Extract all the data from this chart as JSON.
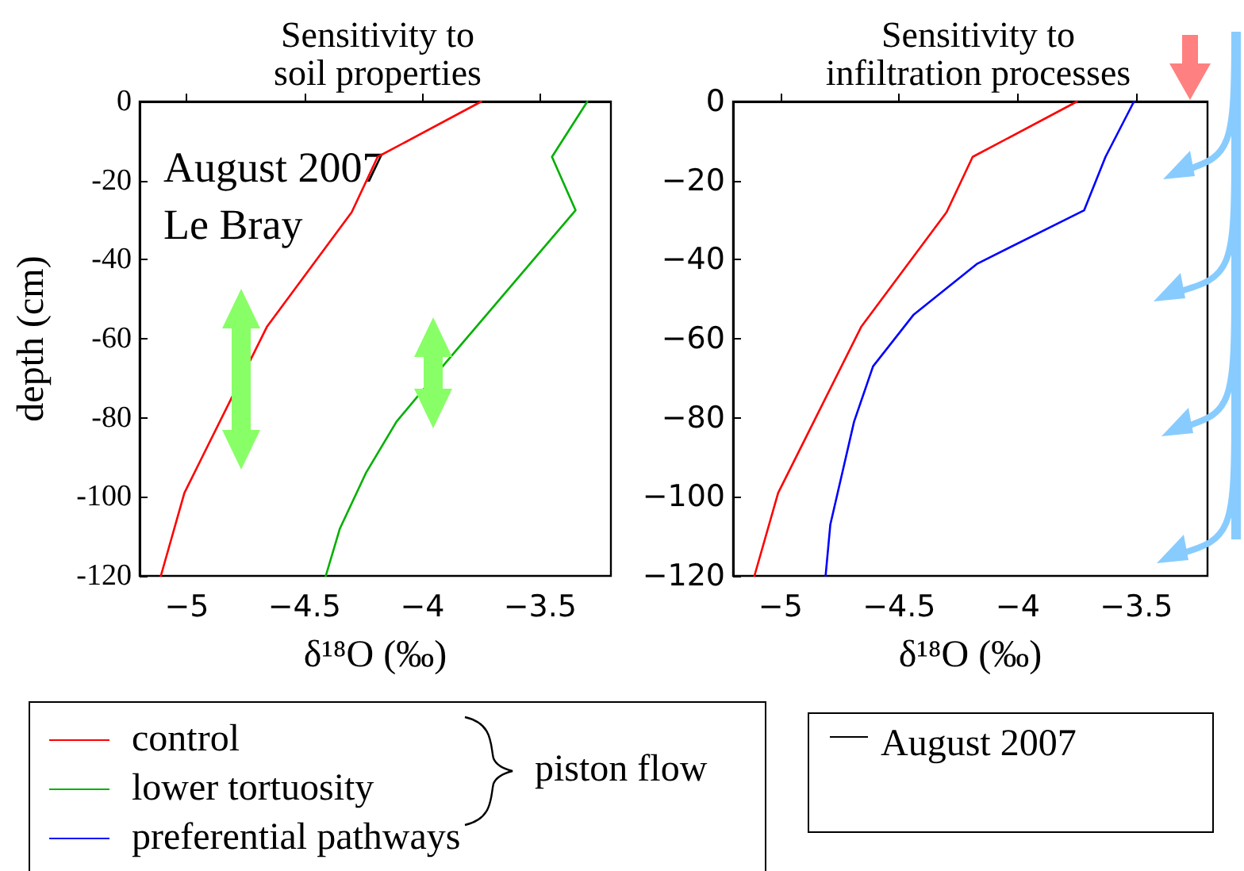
{
  "chart_data": [
    {
      "type": "line",
      "title": "Sensitivity to\nsoil properties",
      "xlabel": "δ¹⁸O (‰)",
      "ylabel": "depth (cm)",
      "xlim": [
        -5.2,
        -3.2
      ],
      "ylim": [
        -120,
        0
      ],
      "xticks": [
        {
          "value": -5,
          "label": "−5"
        },
        {
          "value": -4.5,
          "label": "−4.5"
        },
        {
          "value": -4,
          "label": "−4"
        },
        {
          "value": -3.5,
          "label": "−3.5"
        }
      ],
      "yticks": [
        0,
        -20,
        -40,
        -60,
        -80,
        -100,
        -120
      ],
      "marker": "none",
      "legend": "bottom",
      "annotations": [
        "August 2007",
        "Le Bray",
        "piston flow"
      ],
      "series": [
        {
          "name": "control",
          "color": "#ff0000",
          "x": [
            -3.75,
            -4.19,
            -4.3,
            -4.66,
            -5.01,
            -5.11
          ],
          "values": [
            0,
            -14,
            -28,
            -57,
            -99,
            -120
          ]
        },
        {
          "name": "lower tortuosity",
          "color": "#00b000",
          "x": [
            -3.3,
            -3.45,
            -3.35,
            -3.9,
            -4.11,
            -4.24,
            -4.35,
            -4.41
          ],
          "values": [
            0,
            -14,
            -27.5,
            -66,
            -81,
            -94,
            -108,
            -120
          ]
        }
      ]
    },
    {
      "type": "line",
      "title": "Sensitivity to\ninfiltration processes",
      "xlabel": "δ¹⁸O (‰)",
      "xlim": [
        -5.2,
        -3.2
      ],
      "ylim": [
        -120,
        0
      ],
      "xticks": [
        {
          "value": -5,
          "label": "−5"
        },
        {
          "value": -4.5,
          "label": "−4.5"
        },
        {
          "value": -4,
          "label": "−4"
        },
        {
          "value": -3.5,
          "label": "−3.5"
        }
      ],
      "yticks": [
        {
          "value": 0,
          "label": "0"
        },
        {
          "value": -20,
          "label": "−20"
        },
        {
          "value": -40,
          "label": "−40"
        },
        {
          "value": -60,
          "label": "−60"
        },
        {
          "value": -80,
          "label": "−80"
        },
        {
          "value": -100,
          "label": "−100"
        },
        {
          "value": -120,
          "label": "−120"
        }
      ],
      "marker": "none",
      "legend": "bottom",
      "annotations": [
        "August 2007"
      ],
      "series": [
        {
          "name": "control",
          "color": "#ff0000",
          "x": [
            -3.75,
            -4.19,
            -4.3,
            -4.66,
            -5.01,
            -5.11
          ],
          "values": [
            0,
            -14,
            -28,
            -57,
            -99,
            -120
          ]
        },
        {
          "name": "preferential pathways",
          "color": "#0000ff",
          "x": [
            -3.51,
            -3.63,
            -3.72,
            -4.17,
            -4.44,
            -4.61,
            -4.69,
            -4.74,
            -4.79,
            -4.81
          ],
          "values": [
            0,
            -14,
            -27.5,
            -41,
            -54,
            -67,
            -81,
            -94,
            -107,
            -120
          ]
        }
      ]
    }
  ]
}
